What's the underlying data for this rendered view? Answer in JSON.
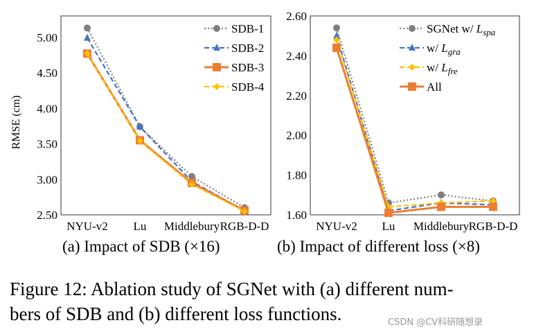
{
  "chart_data": [
    {
      "type": "line",
      "categories": [
        "NYU-v2",
        "Lu",
        "Middlebury",
        "RGB-D-D"
      ],
      "ylabel": "RMSE (cm)",
      "ylim": [
        2.5,
        5.3
      ],
      "yticks": [
        "2.50",
        "3.00",
        "3.50",
        "4.00",
        "4.50",
        "5.00"
      ],
      "grid": false,
      "legend": "top-right",
      "caption": "(a) Impact of SDB (×16)",
      "series": [
        {
          "name": "SDB-1",
          "values": [
            5.13,
            3.74,
            3.04,
            2.6
          ],
          "color": "#7f7f7f",
          "marker": "circle",
          "dash": "dotted"
        },
        {
          "name": "SDB-2",
          "values": [
            4.99,
            3.74,
            2.97,
            2.56
          ],
          "color": "#4472c4",
          "marker": "triangle",
          "dash": "dashed"
        },
        {
          "name": "SDB-3",
          "values": [
            4.77,
            3.55,
            2.95,
            2.56
          ],
          "color": "#ed7d31",
          "marker": "square",
          "dash": "solid"
        },
        {
          "name": "SDB-4",
          "values": [
            4.77,
            3.54,
            2.93,
            2.55
          ],
          "color": "#ffc000",
          "marker": "diamond",
          "dash": "dashed"
        }
      ]
    },
    {
      "type": "line",
      "categories": [
        "NYU-v2",
        "Lu",
        "Middlebury",
        "RGB-D-D"
      ],
      "ylim": [
        1.6,
        2.6
      ],
      "yticks": [
        "1.60",
        "1.80",
        "2.00",
        "2.20",
        "2.40",
        "2.60"
      ],
      "grid": false,
      "legend": "top-right",
      "caption": "(b) Impact of different loss (×8)",
      "series": [
        {
          "name": "SGNet w/ L_spa",
          "label": "SGNet w/ ",
          "sym": "L",
          "sub": "spa",
          "values": [
            2.54,
            1.66,
            1.7,
            1.67
          ],
          "color": "#7f7f7f",
          "marker": "circle",
          "dash": "dotted"
        },
        {
          "name": "w/ L_gra",
          "label": "w/ ",
          "sym": "L",
          "sub": "gra",
          "values": [
            2.5,
            1.62,
            1.66,
            1.65
          ],
          "color": "#4472c4",
          "marker": "triangle",
          "dash": "dashed"
        },
        {
          "name": "w/ L_fre",
          "label": "w/ ",
          "sym": "L",
          "sub": "fre",
          "values": [
            2.48,
            1.64,
            1.66,
            1.67
          ],
          "color": "#ffc000",
          "marker": "diamond",
          "dash": "dashed"
        },
        {
          "name": "All",
          "label": "All",
          "sym": "",
          "sub": "",
          "values": [
            2.44,
            1.61,
            1.64,
            1.64
          ],
          "color": "#ed7d31",
          "marker": "square",
          "dash": "solid"
        }
      ]
    }
  ],
  "figure_caption": {
    "line1": "Figure 12: Ablation study of SGNet with (a) different num-",
    "line2": "bers of SDB and (b) different loss functions."
  },
  "watermark": "CSDN @CV科研随想录"
}
